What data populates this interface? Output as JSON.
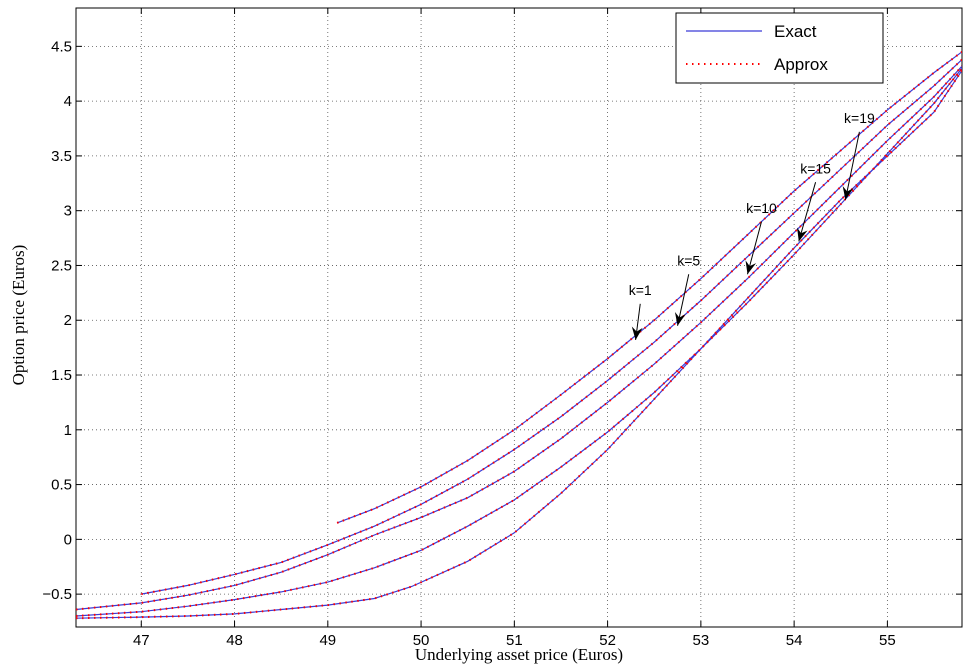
{
  "chart_data": {
    "type": "line",
    "title": "",
    "xlabel": "Underlying asset price (Euros)",
    "ylabel": "Option price (Euros)",
    "xlim": [
      46.3,
      55.8
    ],
    "ylim": [
      -0.8,
      4.85
    ],
    "xticks": [
      47,
      48,
      49,
      50,
      51,
      52,
      53,
      54,
      55
    ],
    "yticks": [
      -0.5,
      0,
      0.5,
      1,
      1.5,
      2,
      2.5,
      3,
      3.5,
      4,
      4.5
    ],
    "xtick_labels": [
      "47",
      "48",
      "49",
      "50",
      "51",
      "52",
      "53",
      "54",
      "55"
    ],
    "ytick_labels": [
      "−0.5",
      "0",
      "0.5",
      "1",
      "1.5",
      "2",
      "2.5",
      "3",
      "3.5",
      "4",
      "4.5"
    ],
    "grid": true,
    "legend_position": "top-right",
    "legend": [
      {
        "label": "Exact",
        "color": "#3b3bd6",
        "style": "solid"
      },
      {
        "label": "Approx",
        "color": "#ff0000",
        "style": "dotted"
      }
    ],
    "series": [
      {
        "id": "k1",
        "x": [
          49.1,
          49.5,
          50.0,
          50.5,
          51.0,
          51.5,
          52.0,
          52.5,
          53.0,
          53.5,
          54.0,
          54.5,
          55.0,
          55.5,
          55.8
        ],
        "y": [
          0.15,
          0.28,
          0.48,
          0.72,
          1.0,
          1.32,
          1.65,
          2.0,
          2.38,
          2.78,
          3.18,
          3.55,
          3.92,
          4.26,
          4.45
        ]
      },
      {
        "id": "k5",
        "x": [
          47.0,
          47.5,
          48.0,
          48.5,
          49.0,
          49.5,
          50.0,
          50.5,
          51.0,
          51.5,
          52.0,
          52.5,
          53.0,
          53.5,
          54.0,
          54.5,
          55.0,
          55.5,
          55.8
        ],
        "y": [
          -0.5,
          -0.42,
          -0.32,
          -0.21,
          -0.05,
          0.12,
          0.32,
          0.55,
          0.82,
          1.12,
          1.45,
          1.8,
          2.18,
          2.58,
          2.98,
          3.38,
          3.78,
          4.14,
          4.38
        ]
      },
      {
        "id": "k10",
        "x": [
          46.3,
          47.0,
          47.5,
          48.0,
          48.5,
          49.0,
          49.5,
          50.0,
          50.5,
          51.0,
          51.5,
          52.0,
          52.5,
          53.0,
          53.5,
          54.0,
          54.5,
          55.0,
          55.5,
          55.8
        ],
        "y": [
          -0.64,
          -0.58,
          -0.51,
          -0.42,
          -0.3,
          -0.14,
          0.04,
          0.2,
          0.38,
          0.62,
          0.92,
          1.25,
          1.6,
          1.98,
          2.38,
          2.8,
          3.22,
          3.64,
          4.04,
          4.32
        ]
      },
      {
        "id": "k15",
        "x": [
          46.3,
          47.0,
          47.5,
          48.0,
          48.5,
          49.0,
          49.5,
          50.0,
          50.5,
          51.0,
          51.5,
          52.0,
          52.5,
          53.0,
          53.5,
          54.0,
          54.5,
          55.0,
          55.5,
          55.8
        ],
        "y": [
          -0.7,
          -0.66,
          -0.61,
          -0.55,
          -0.48,
          -0.39,
          -0.26,
          -0.1,
          0.12,
          0.36,
          0.66,
          0.98,
          1.34,
          1.74,
          2.16,
          2.6,
          3.06,
          3.52,
          3.98,
          4.3
        ]
      },
      {
        "id": "k19",
        "x": [
          46.3,
          47.0,
          47.5,
          48.0,
          48.5,
          49.0,
          49.5,
          49.9,
          50.5,
          51.0,
          51.5,
          52.0,
          52.5,
          53.0,
          53.5,
          54.0,
          54.5,
          55.0,
          55.5,
          55.8
        ],
        "y": [
          -0.72,
          -0.71,
          -0.7,
          -0.68,
          -0.64,
          -0.6,
          -0.54,
          -0.43,
          -0.2,
          0.06,
          0.42,
          0.82,
          1.28,
          1.74,
          2.2,
          2.66,
          3.1,
          3.5,
          3.9,
          4.28
        ]
      }
    ],
    "annotations": [
      {
        "text": "k=1",
        "label_x": 52.35,
        "label_y": 2.23,
        "arrow_from": [
          52.35,
          2.15
        ],
        "arrow_to": [
          52.3,
          1.82
        ]
      },
      {
        "text": "k=5",
        "label_x": 52.87,
        "label_y": 2.5,
        "arrow_from": [
          52.87,
          2.42
        ],
        "arrow_to": [
          52.75,
          1.95
        ]
      },
      {
        "text": "k=10",
        "label_x": 53.65,
        "label_y": 2.98,
        "arrow_from": [
          53.65,
          2.9
        ],
        "arrow_to": [
          53.5,
          2.42
        ]
      },
      {
        "text": "k=15",
        "label_x": 54.23,
        "label_y": 3.34,
        "arrow_from": [
          54.23,
          3.26
        ],
        "arrow_to": [
          54.05,
          2.72
        ]
      },
      {
        "text": "k=19",
        "label_x": 54.7,
        "label_y": 3.8,
        "arrow_from": [
          54.7,
          3.72
        ],
        "arrow_to": [
          54.55,
          3.1
        ]
      }
    ]
  }
}
